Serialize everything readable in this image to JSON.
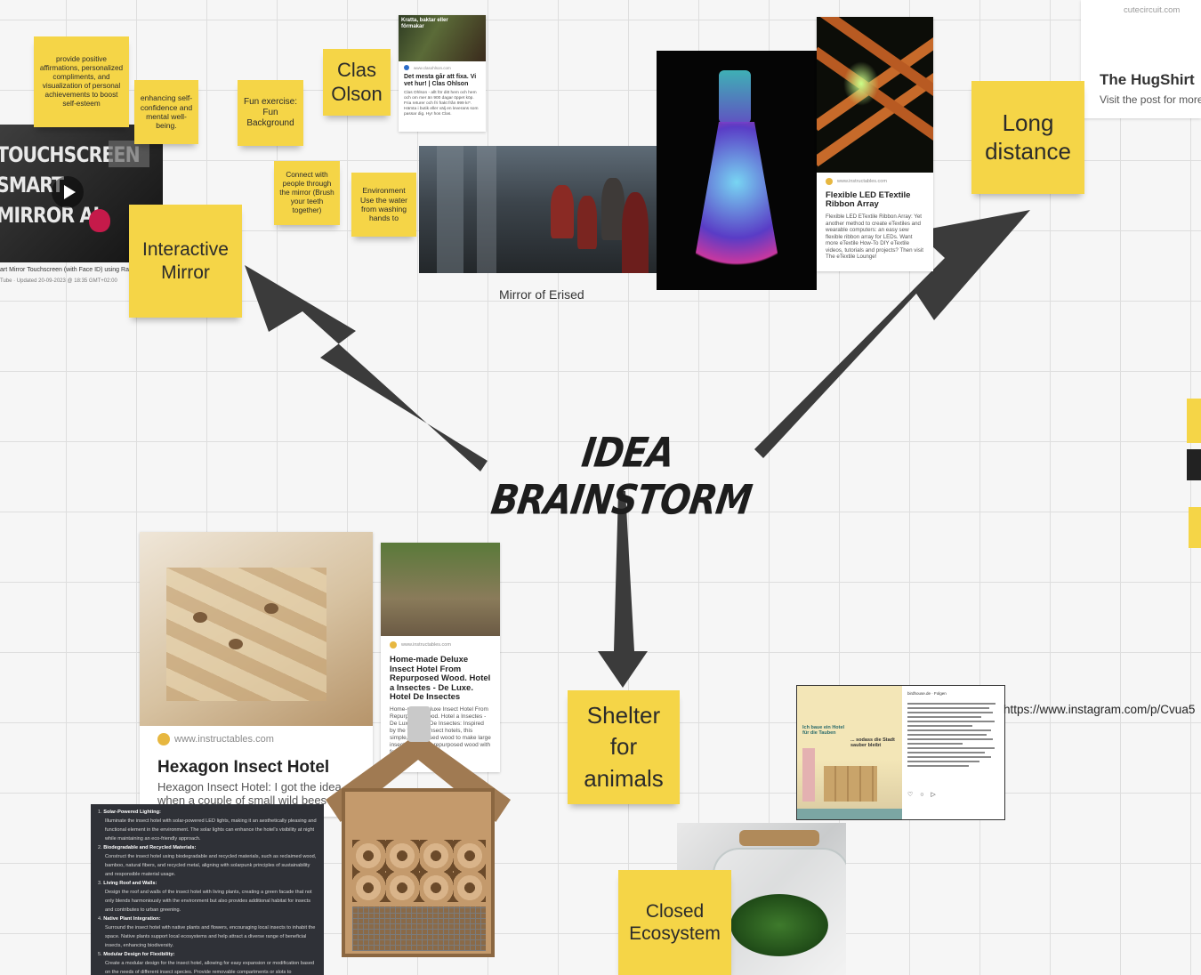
{
  "board": {
    "center_title": "IDEA BRAINSTORM",
    "colors": {
      "sticky": "#f5d547",
      "arrow": "#3b3b3b",
      "grid": "#dedede",
      "background": "#f6f6f6"
    }
  },
  "stickies": {
    "affirmations": "provide positive affirmations, personalized compliments, and visualization of personal achievements to boost self-esteem",
    "confidence": "enhancing self-confidence and mental well-being.",
    "fun_exercise": "Fun exercise: Fun Background",
    "clas_olson": "Clas Olson",
    "connect": "Connect with people through the mirror (Brush your teeth together)",
    "environment": "Environment Use the water from washing hands to",
    "interactive_mirror": "Interactive Mirror",
    "long_distance": "Long distance",
    "shelter": "Shelter for animals",
    "closed_ecosystem": "Closed Ecosystem"
  },
  "labels": {
    "mirror_of_erised": "Mirror of Erised",
    "instagram_url": "https://www.instagram.com/p/Cvua5",
    "hugshirt_site": "cutecircuit.com",
    "hugshirt_title": "The HugShirt",
    "hugshirt_text": "Visit the post for more"
  },
  "youtube": {
    "thumb_lines": [
      "TOUCHSCREEN",
      "SMART",
      "MIRROR AI"
    ],
    "caption": "art Mirror Touchscreen (with Face ID) using Ra",
    "meta": "Tube · Updated 20-09-2023 @ 18:35 GMT+02:00"
  },
  "clas_card": {
    "banner": "Kratta, baktar eller förmakar",
    "site": "www.clasohlson.com",
    "title": "Det mesta går att fixa. Vi vet hur! | Clas Ohlson",
    "text": "Clas Ohlson - allt för ditt hem och hem och om mer än 900 dagar öppet köp. Fria returer och fri frakt från 999 kr*. Hämta i butik eller välj en leverans som passar dig. Hyr hos Clas."
  },
  "led_card": {
    "site": "www.instructables.com",
    "title": "Flexible LED ETextile Ribbon Array",
    "text": "Flexible LED ETextile Ribbon Array: Yet another method to create eTextiles and wearable computers: an easy sew flexible ribbon array for LEDs. Want more eTextile How-To DIY eTextile videos, tutorials and projects? Then visit The eTextile Lounge!"
  },
  "hexagon_card": {
    "site": "www.instructables.com",
    "title": "Hexagon Insect Hotel",
    "text": "Hexagon Insect Hotel: I got the idea when a couple of small wild bees"
  },
  "deluxe_card": {
    "site": "www.instructables.com",
    "title": "Home-made Deluxe Insect Hotel From Repurposed Wood. Hotel a Insectes - De Luxe. Hotel De Insectes",
    "text": "Home-made Deluxe Insect Hotel From Repurposed Wood. Hotel a Insectes - De Luxe. Hotel De Insectes: Inspired by the trend of insect hotels, this simple, repurposed wood to make large insect hotel from repurposed wood with foraged materials"
  },
  "chat": {
    "items": [
      {
        "num": "1.",
        "head": "Solar-Powered Lighting:",
        "body": "Illuminate the insect hotel with solar-powered LED lights, making it an aesthetically pleasing and functional element in the environment. The solar lights can enhance the hotel's visibility at night while maintaining an eco-friendly approach."
      },
      {
        "num": "2.",
        "head": "Biodegradable and Recycled Materials:",
        "body": "Construct the insect hotel using biodegradable and recycled materials, such as reclaimed wood, bamboo, natural fibers, and recycled metal, aligning with solarpunk principles of sustainability and responsible material usage."
      },
      {
        "num": "3.",
        "head": "Living Roof and Walls:",
        "body": "Design the roof and walls of the insect hotel with living plants, creating a green facade that not only blends harmoniously with the environment but also provides additional habitat for insects and contributes to urban greening."
      },
      {
        "num": "4.",
        "head": "Native Plant Integration:",
        "body": "Surround the insect hotel with native plants and flowers, encouraging local insects to inhabit the space. Native plants support local ecosystems and help attract a diverse range of beneficial insects, enhancing biodiversity."
      },
      {
        "num": "5.",
        "head": "Modular Design for Flexibility:",
        "body": "Create a modular design for the insect hotel, allowing for easy expansion or modification based on the needs of different insect species. Provide removable compartments or slots to"
      }
    ]
  },
  "insta": {
    "user": "birdhouse.de · Folgen",
    "image_text_1": "Ich baue ein Hotel für die Tauben",
    "image_text_2": "... sodass die Stadt sauber bleibt"
  }
}
